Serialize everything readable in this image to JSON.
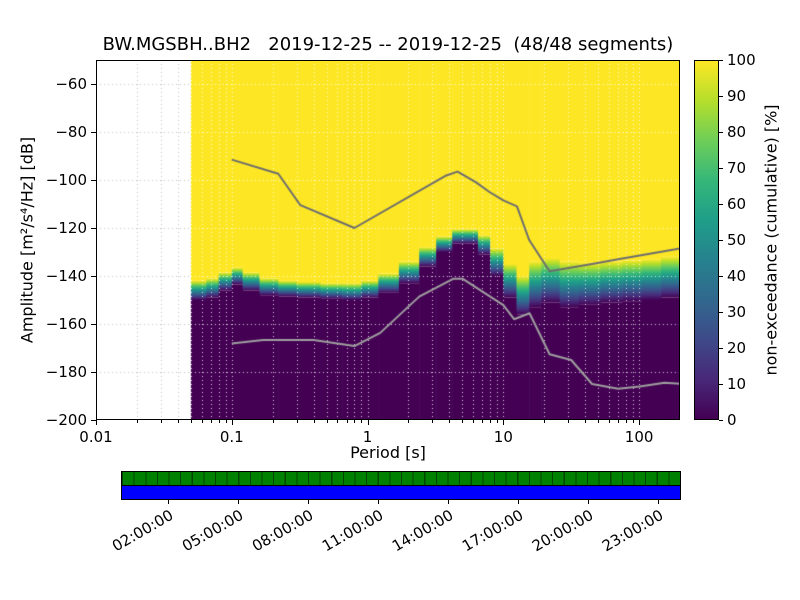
{
  "title": "BW.MGSBH..BH2   2019-12-25 -- 2019-12-25  (48/48 segments)",
  "chart_data": {
    "type": "heatmap",
    "title": "BW.MGSBH..BH2   2019-12-25 -- 2019-12-25  (48/48 segments)",
    "xlabel": "Period [s]",
    "ylabel": "Amplitude [m²/s⁴/Hz] [dB]",
    "colorbar_label": "non-exceedance (cumulative) [%]",
    "x_scale": "log",
    "xlim": [
      0.01,
      200
    ],
    "ylim": [
      -200,
      -50
    ],
    "x_ticks": [
      {
        "value": 0.01,
        "label": "0.01"
      },
      {
        "value": 0.1,
        "label": "0.1"
      },
      {
        "value": 1,
        "label": "1"
      },
      {
        "value": 10,
        "label": "10"
      },
      {
        "value": 100,
        "label": "100"
      }
    ],
    "y_ticks": [
      {
        "value": -60,
        "label": "−60"
      },
      {
        "value": -80,
        "label": "−80"
      },
      {
        "value": -100,
        "label": "−100"
      },
      {
        "value": -120,
        "label": "−120"
      },
      {
        "value": -140,
        "label": "−140"
      },
      {
        "value": -160,
        "label": "−160"
      },
      {
        "value": -180,
        "label": "−180"
      },
      {
        "value": -200,
        "label": "−200"
      }
    ],
    "colorbar_ticks": [
      {
        "value": 100,
        "label": "100"
      },
      {
        "value": 90,
        "label": "90"
      },
      {
        "value": 80,
        "label": "80"
      },
      {
        "value": 70,
        "label": "70"
      },
      {
        "value": 60,
        "label": "60"
      },
      {
        "value": 50,
        "label": "50"
      },
      {
        "value": 40,
        "label": "40"
      },
      {
        "value": 30,
        "label": "30"
      },
      {
        "value": 20,
        "label": "20"
      },
      {
        "value": 10,
        "label": "10"
      },
      {
        "value": 0,
        "label": "0"
      }
    ],
    "colormap": [
      "#440154",
      "#482878",
      "#3e4a89",
      "#31688e",
      "#26828e",
      "#1f9e89",
      "#35b779",
      "#6ece58",
      "#b5de2b",
      "#fde725"
    ],
    "grid": {
      "style": "dotted",
      "color_over_data": "#ffffff",
      "color_over_blank": "#bbbbbb"
    },
    "data_period_range": [
      0.05,
      200
    ],
    "distribution": {
      "note": "columns = [period s, dB where 100% (yellow) band ends, dB where 0% (dark) band begins]",
      "columns": [
        [
          0.05,
          -142,
          -150
        ],
        [
          0.065,
          -141,
          -149
        ],
        [
          0.08,
          -138.5,
          -146
        ],
        [
          0.1,
          -136.5,
          -143.5
        ],
        [
          0.12,
          -138.5,
          -146
        ],
        [
          0.16,
          -141,
          -148
        ],
        [
          0.22,
          -142,
          -148.5
        ],
        [
          0.3,
          -142.5,
          -149
        ],
        [
          0.45,
          -143,
          -149.5
        ],
        [
          0.65,
          -143,
          -150
        ],
        [
          0.9,
          -142,
          -149
        ],
        [
          1.2,
          -139,
          -147
        ],
        [
          1.7,
          -134,
          -143
        ],
        [
          2.4,
          -128,
          -136
        ],
        [
          3.2,
          -123.5,
          -130
        ],
        [
          4.2,
          -120.5,
          -126.5
        ],
        [
          5.2,
          -120.5,
          -126.5
        ],
        [
          6.5,
          -123,
          -131
        ],
        [
          8,
          -128.5,
          -140
        ],
        [
          10,
          -135,
          -149
        ],
        [
          12.5,
          -140,
          -156
        ],
        [
          15.5,
          -134,
          -153
        ],
        [
          19,
          -132.5,
          -151
        ],
        [
          26,
          -134,
          -153
        ],
        [
          36,
          -134.5,
          -152
        ],
        [
          52,
          -134,
          -151
        ],
        [
          75,
          -133.5,
          -150.5
        ],
        [
          105,
          -133,
          -150
        ],
        [
          145,
          -132,
          -149
        ],
        [
          200,
          -130,
          -147
        ]
      ]
    },
    "noise_models": {
      "high": [
        [
          0.1,
          -91.5
        ],
        [
          0.22,
          -97.4
        ],
        [
          0.32,
          -110.5
        ],
        [
          0.8,
          -120
        ],
        [
          3.8,
          -98.1
        ],
        [
          4.6,
          -96.5
        ],
        [
          6.3,
          -101
        ],
        [
          7.9,
          -105
        ],
        [
          10,
          -108.5
        ],
        [
          12.6,
          -111
        ],
        [
          15.5,
          -125
        ],
        [
          21.9,
          -138
        ],
        [
          45,
          -135
        ],
        [
          70,
          -133
        ],
        [
          101,
          -131.5
        ],
        [
          200,
          -128.5
        ]
      ],
      "low": [
        [
          0.1,
          -168.1
        ],
        [
          0.17,
          -166.7
        ],
        [
          0.4,
          -166.7
        ],
        [
          0.8,
          -169.2
        ],
        [
          1.24,
          -163.7
        ],
        [
          2.4,
          -148.6
        ],
        [
          4.3,
          -141.1
        ],
        [
          5,
          -141.1
        ],
        [
          6,
          -144
        ],
        [
          10,
          -152.1
        ],
        [
          12,
          -158
        ],
        [
          15.6,
          -155.5
        ],
        [
          21.9,
          -172.6
        ],
        [
          31.6,
          -175
        ],
        [
          45,
          -185
        ],
        [
          70,
          -187
        ],
        [
          101,
          -186
        ],
        [
          154,
          -184.5
        ],
        [
          200,
          -184.9
        ]
      ],
      "color_high": "#6e6e6e",
      "color_low": "#9e9e9e"
    },
    "timeline": {
      "hours_span": [
        0,
        24
      ],
      "segments": 48,
      "colors": {
        "top_strip": "#008000",
        "bottom_strip": "#0000ff"
      },
      "tick_hours": [
        2,
        5,
        8,
        11,
        14,
        17,
        20,
        23
      ],
      "tick_labels": [
        "02:00:00",
        "05:00:00",
        "08:00:00",
        "11:00:00",
        "14:00:00",
        "17:00:00",
        "20:00:00",
        "23:00:00"
      ]
    }
  }
}
